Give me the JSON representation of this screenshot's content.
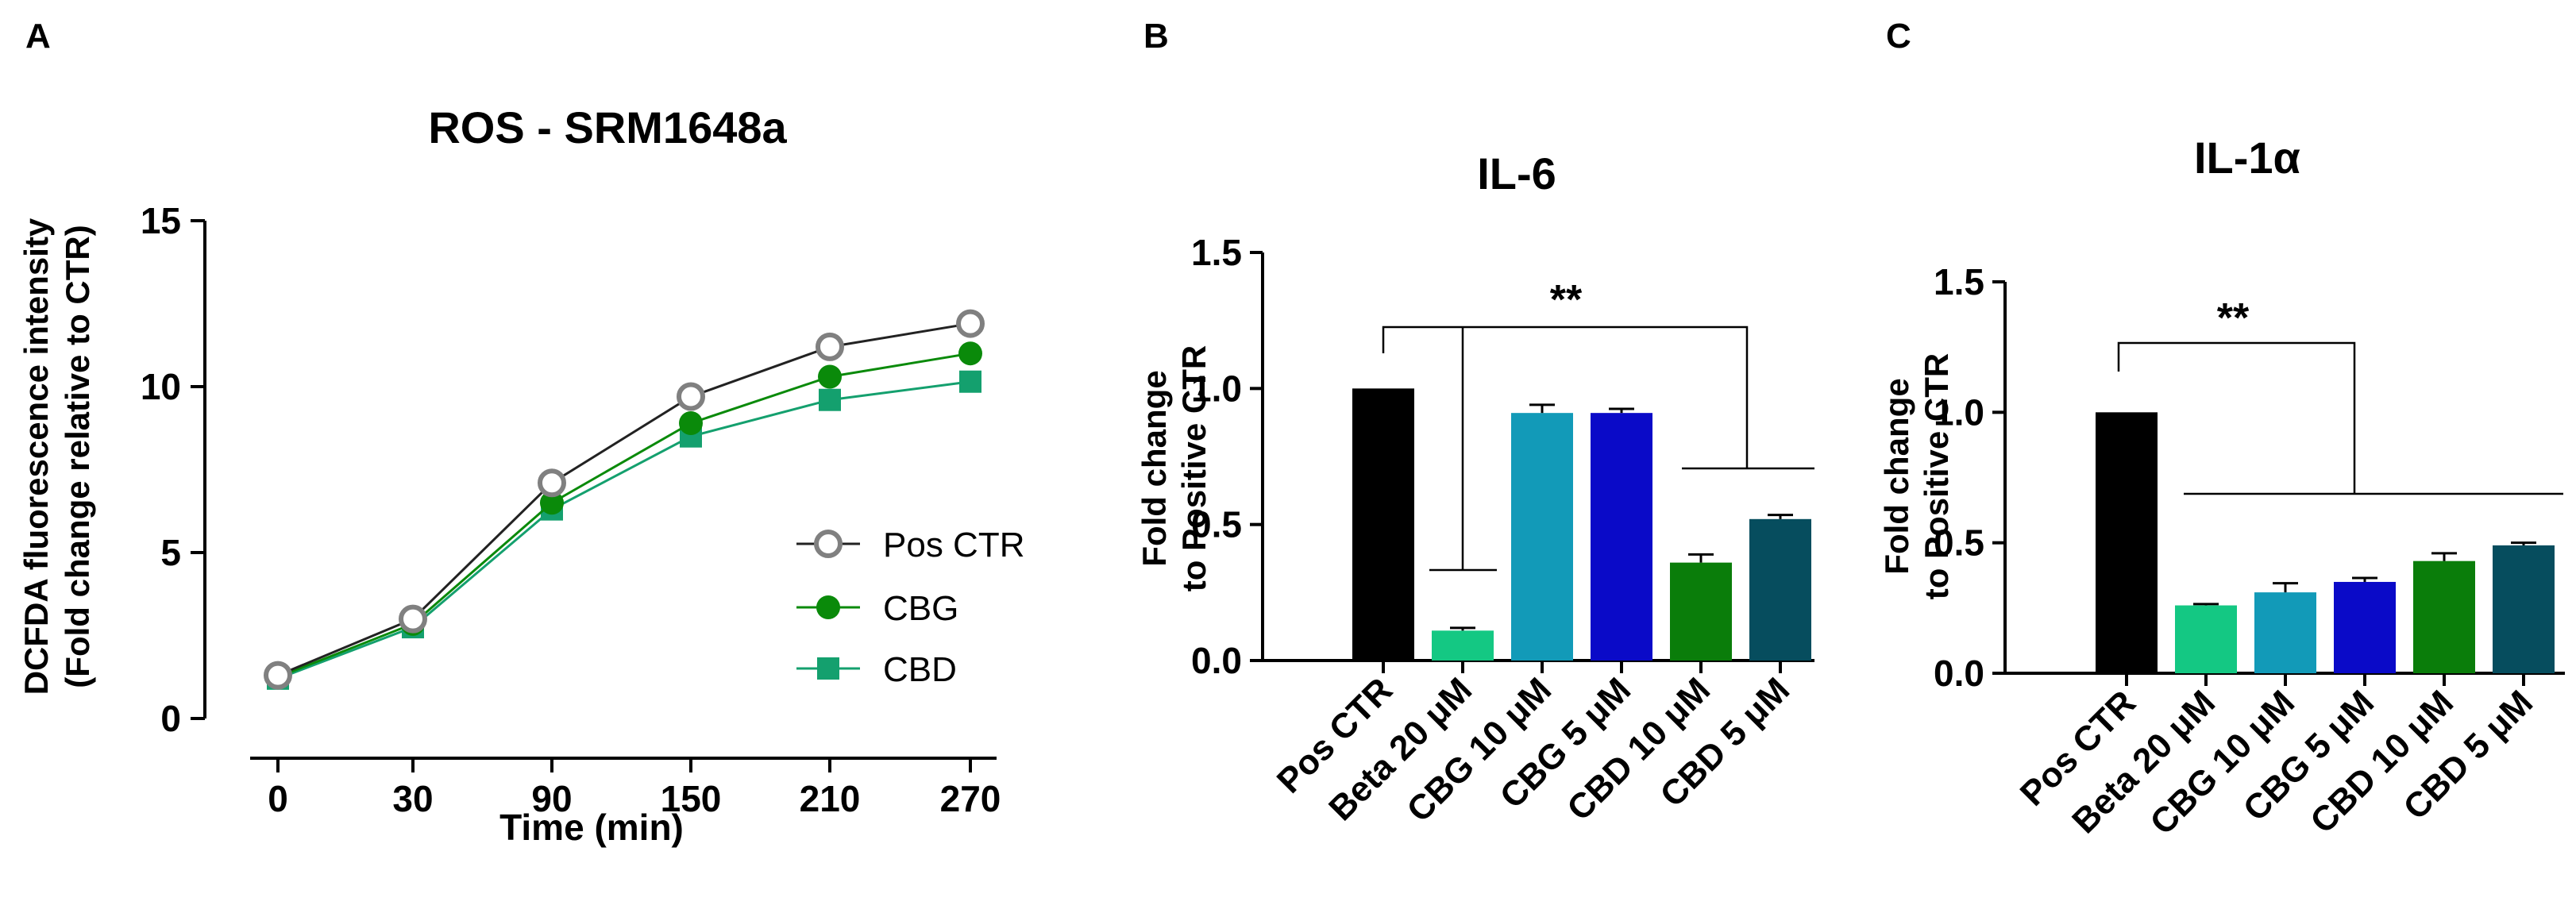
{
  "chart_data": [
    {
      "panel": "A",
      "type": "line",
      "title": "ROS - SRM1648a",
      "xlabel": "Time (min)",
      "ylabel": [
        "DCFDA fluorescence intensity",
        "(Fold change relative to CTR)"
      ],
      "x": [
        "0",
        "30",
        "90",
        "150",
        "210",
        "270"
      ],
      "ylim": [
        0,
        15
      ],
      "yticks": [
        "0",
        "5",
        "10",
        "15"
      ],
      "legend_position": "right",
      "series": [
        {
          "name": "Pos CTR",
          "marker": "open-circle",
          "color": "#808080",
          "line_color": "#222222",
          "values": [
            1.3,
            3.0,
            7.1,
            9.7,
            11.2,
            11.9
          ]
        },
        {
          "name": "CBG",
          "marker": "filled-circle",
          "color": "#0a8a0a",
          "line_color": "#0a8a0a",
          "values": [
            1.25,
            2.85,
            6.5,
            8.9,
            10.3,
            11.0
          ]
        },
        {
          "name": "CBD",
          "marker": "filled-square",
          "color": "#14a06e",
          "line_color": "#14a06e",
          "values": [
            1.2,
            2.75,
            6.3,
            8.5,
            9.6,
            10.15
          ]
        }
      ]
    },
    {
      "panel": "B",
      "type": "bar",
      "title": "IL-6",
      "ylabel": [
        "Fold change",
        "to Positive CTR"
      ],
      "ylim": [
        0,
        1.5
      ],
      "yticks": [
        "0.0",
        "0.5",
        "1.0",
        "1.5"
      ],
      "categories": [
        "Pos CTR",
        "Beta 20 μM",
        "CBG 10 μM",
        "CBG 5 μM",
        "CBD 10 μM",
        "CBD 5 μM"
      ],
      "values": [
        1.0,
        0.11,
        0.91,
        0.91,
        0.36,
        0.52
      ],
      "errors": [
        0,
        0.01,
        0.03,
        0.015,
        0.03,
        0.015
      ],
      "colors": [
        "#000000",
        "#14c883",
        "#129ab8",
        "#0a0ac8",
        "#0a7d0a",
        "#064d5e"
      ],
      "significance": "**"
    },
    {
      "panel": "C",
      "type": "bar",
      "title": "IL-1α",
      "ylabel": [
        "Fold change",
        "to Positive CTR"
      ],
      "ylim": [
        0,
        1.5
      ],
      "yticks": [
        "0.0",
        "0.5",
        "1.0",
        "1.5"
      ],
      "categories": [
        "Pos CTR",
        "Beta 20 μM",
        "CBG 10 μM",
        "CBG 5 μM",
        "CBD 10 μM",
        "CBD 5 μM"
      ],
      "values": [
        1.0,
        0.26,
        0.31,
        0.35,
        0.43,
        0.49
      ],
      "errors": [
        0,
        0.005,
        0.035,
        0.015,
        0.03,
        0.01
      ],
      "colors": [
        "#000000",
        "#14c883",
        "#129ab8",
        "#0a0ac8",
        "#0a7d0a",
        "#064d5e"
      ],
      "significance": "**"
    }
  ]
}
